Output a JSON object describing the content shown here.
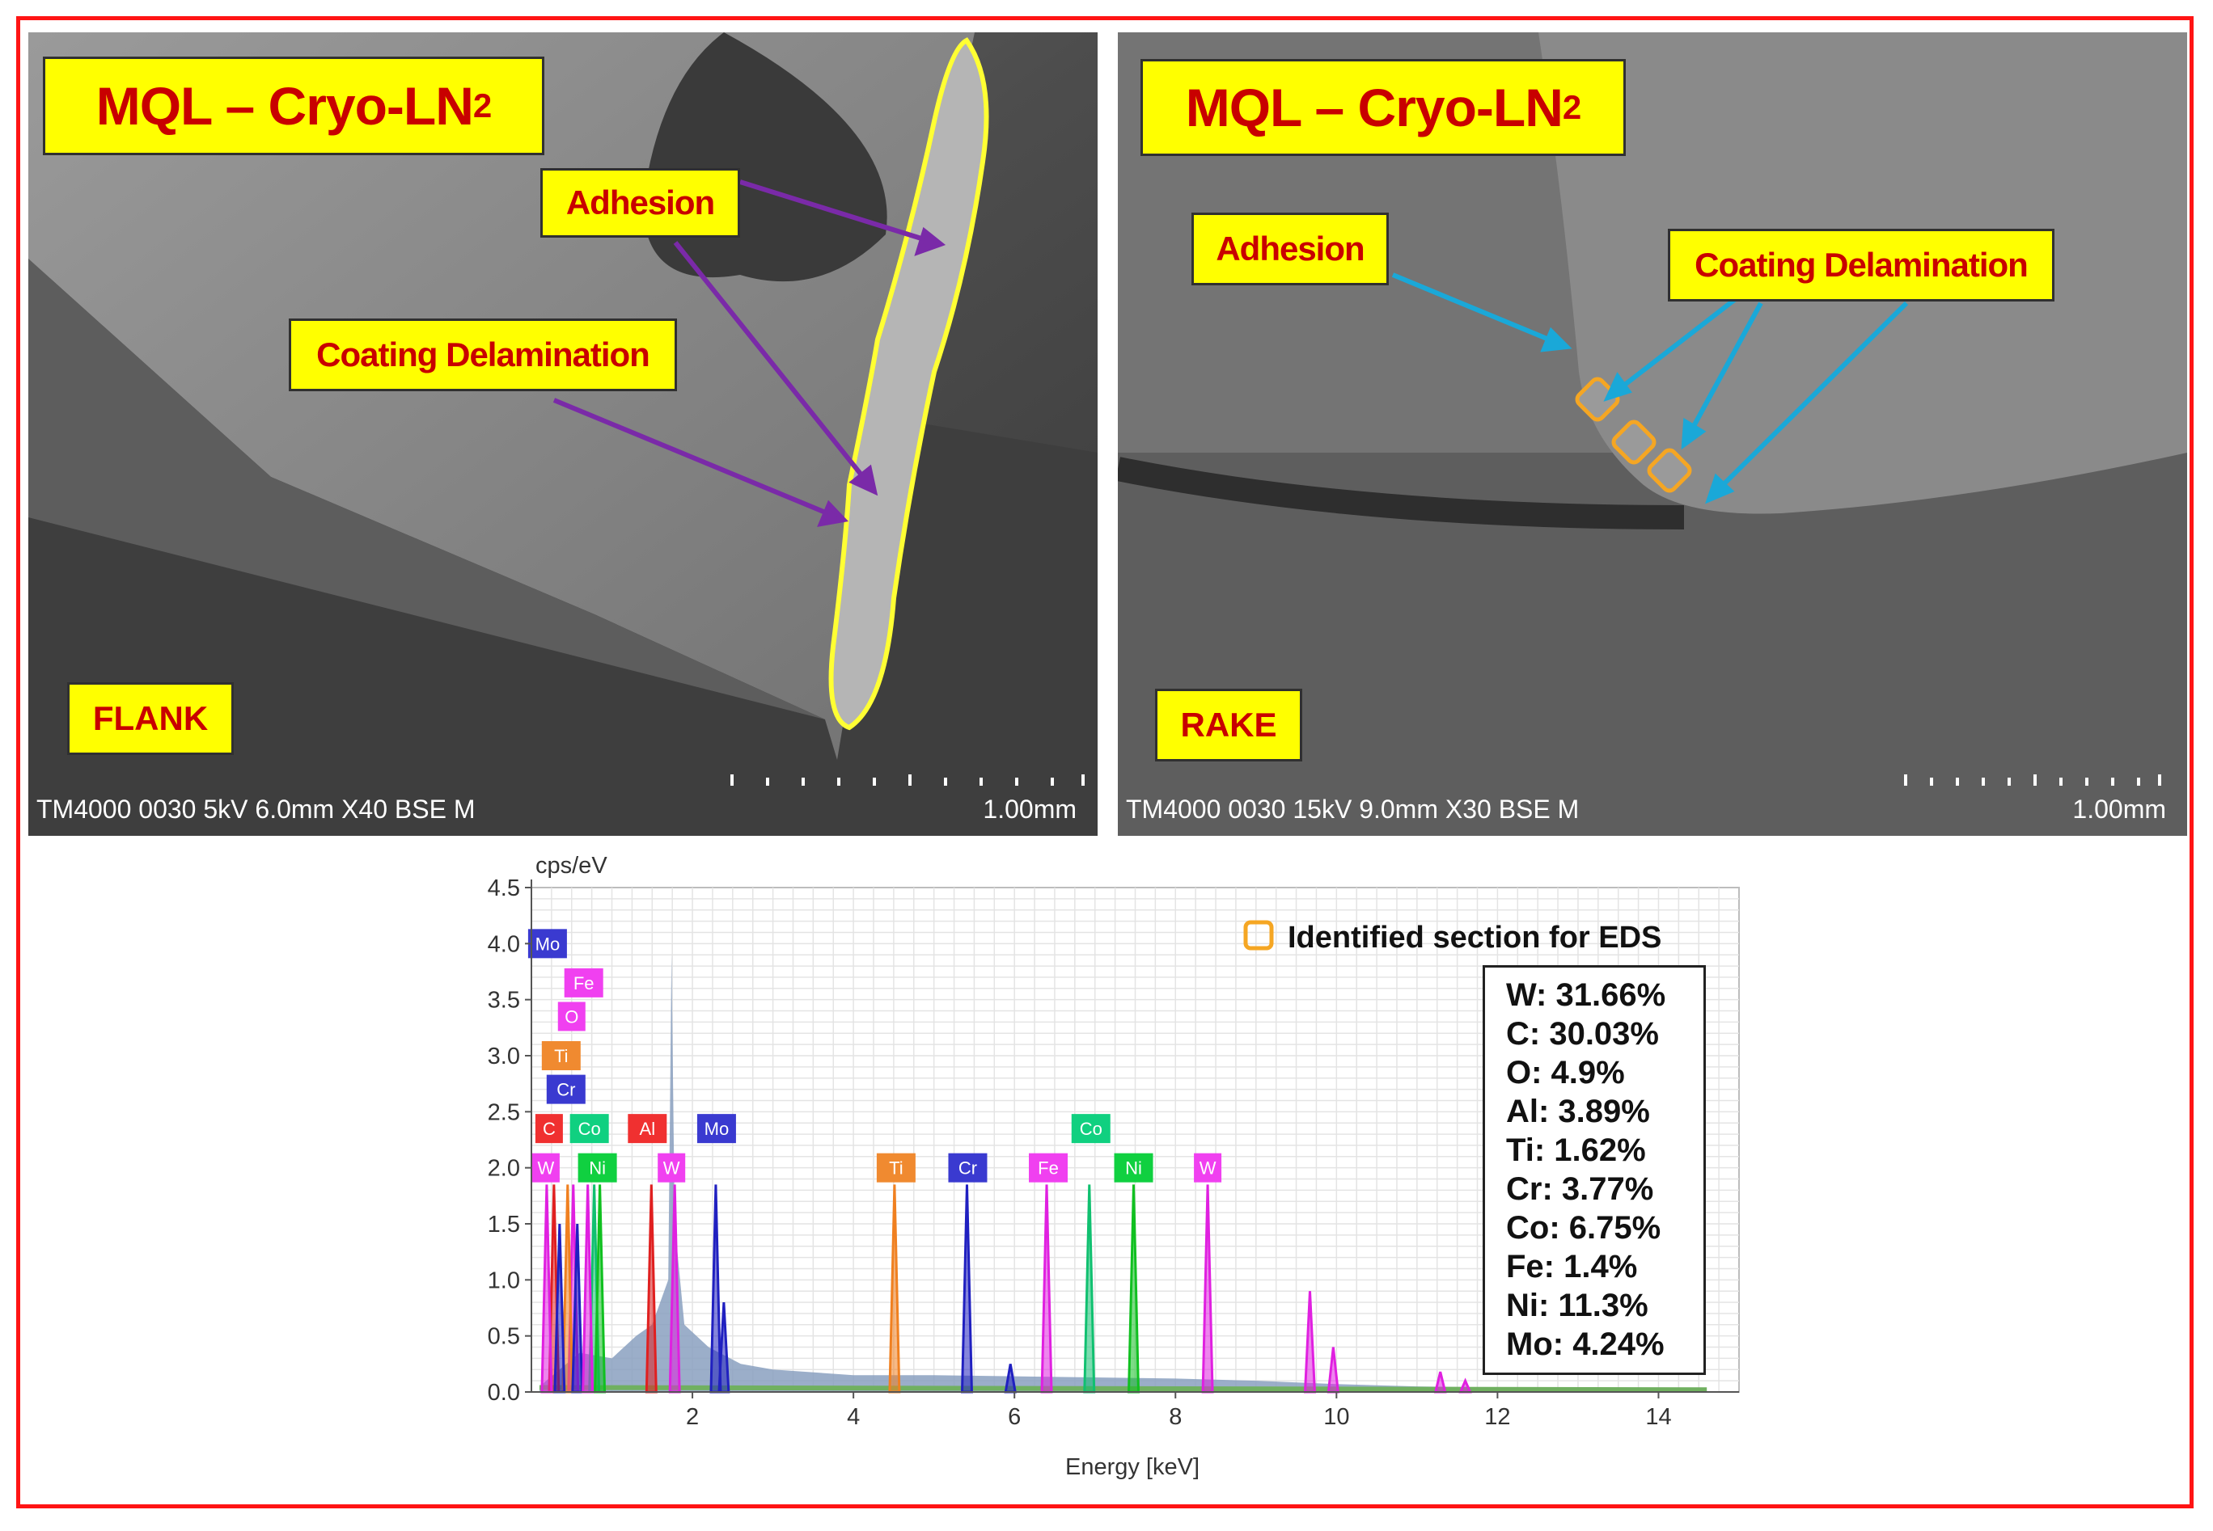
{
  "figure": {
    "frame_color": "#ff1414",
    "label_fill": "#ffff00",
    "label_text_color": "#c80000"
  },
  "flank_panel": {
    "title_main": "MQL – Cryo-LN",
    "title_sub": "2",
    "adhesion_label": "Adhesion",
    "delamination_label": "Coating Delamination",
    "position_label": "FLANK",
    "sem_info": "TM4000 0030 5kV 6.0mm X40 BSE M",
    "scale_label": "1.00mm",
    "outline_color": "#ffff33",
    "arrow_color": "#7a2aa8"
  },
  "rake_panel": {
    "title_main": "MQL – Cryo-LN",
    "title_sub": "2",
    "adhesion_label": "Adhesion",
    "delamination_label": "Coating Delamination",
    "position_label": "RAKE",
    "sem_info": "TM4000 0030 15kV 9.0mm X30 BSE M",
    "scale_label": "1.00mm",
    "marker_color": "#f5a623",
    "arrow_color": "#1aa8d8"
  },
  "chart_data": {
    "type": "line",
    "title": "",
    "xlabel": "Energy [keV]",
    "ylabel": "cps/eV",
    "xlim": [
      0,
      15
    ],
    "ylim": [
      0,
      4.5
    ],
    "x_ticks": [
      2,
      4,
      6,
      8,
      10,
      12,
      14
    ],
    "y_ticks": [
      "0.0",
      "0.5",
      "1.0",
      "1.5",
      "2.0",
      "2.5",
      "3.0",
      "3.5",
      "4.0",
      "4.5"
    ],
    "grid": true,
    "legend": {
      "label": "Identified section for EDS",
      "marker_color": "#f5a623",
      "placement": "top-right"
    },
    "main_peak": {
      "energy": 1.74,
      "height": 3.9,
      "color": "#8aa0c0"
    },
    "peaks": [
      {
        "element": "C",
        "energy": 0.28,
        "height": 1.85,
        "color": "#e02020"
      },
      {
        "element": "W",
        "energy": 0.19,
        "height": 1.85,
        "color": "#e020e0"
      },
      {
        "element": "O",
        "energy": 0.52,
        "height": 1.85,
        "color": "#e020e0"
      },
      {
        "element": "Ti",
        "energy": 0.45,
        "height": 1.85,
        "color": "#f08020"
      },
      {
        "element": "Cr",
        "energy": 0.57,
        "height": 1.5,
        "color": "#2020c0"
      },
      {
        "element": "Co",
        "energy": 0.78,
        "height": 1.85,
        "color": "#10c070"
      },
      {
        "element": "Ni",
        "energy": 0.85,
        "height": 1.85,
        "color": "#10c020"
      },
      {
        "element": "Fe",
        "energy": 0.7,
        "height": 1.85,
        "color": "#e020e0"
      },
      {
        "element": "Mo",
        "energy": 0.35,
        "height": 1.5,
        "color": "#2020c0"
      },
      {
        "element": "Al",
        "energy": 1.49,
        "height": 1.85,
        "color": "#e02020"
      },
      {
        "element": "W",
        "energy": 1.78,
        "height": 1.85,
        "color": "#e020e0"
      },
      {
        "element": "Mo",
        "energy": 2.29,
        "height": 1.85,
        "color": "#2020c0"
      },
      {
        "element": "Mo",
        "energy": 2.39,
        "height": 0.8,
        "color": "#2020c0"
      },
      {
        "element": "Ti",
        "energy": 4.51,
        "height": 1.85,
        "color": "#f08020"
      },
      {
        "element": "Cr",
        "energy": 5.41,
        "height": 1.85,
        "color": "#2020c0"
      },
      {
        "element": "Cr",
        "energy": 5.95,
        "height": 0.25,
        "color": "#2020c0"
      },
      {
        "element": "Fe",
        "energy": 6.4,
        "height": 1.85,
        "color": "#e020e0"
      },
      {
        "element": "Co",
        "energy": 6.93,
        "height": 1.85,
        "color": "#10c070"
      },
      {
        "element": "Ni",
        "energy": 7.48,
        "height": 1.85,
        "color": "#10c020"
      },
      {
        "element": "W",
        "energy": 8.4,
        "height": 1.85,
        "color": "#e020e0"
      },
      {
        "element": "W",
        "energy": 9.67,
        "height": 0.9,
        "color": "#e020e0"
      },
      {
        "element": "W",
        "energy": 9.96,
        "height": 0.4,
        "color": "#e020e0"
      },
      {
        "element": "W",
        "energy": 11.29,
        "height": 0.18,
        "color": "#e020e0"
      },
      {
        "element": "W",
        "energy": 11.6,
        "height": 0.1,
        "color": "#e020e0"
      }
    ],
    "element_labels": [
      {
        "text": "Mo",
        "energy": 0.2,
        "y": 4.0,
        "color": "#3a3ad0"
      },
      {
        "text": "Fe",
        "energy": 0.65,
        "y": 3.65,
        "color": "#f040f0"
      },
      {
        "text": "O",
        "energy": 0.5,
        "y": 3.35,
        "color": "#f040f0"
      },
      {
        "text": "Ti",
        "energy": 0.37,
        "y": 3.0,
        "color": "#f08a30"
      },
      {
        "text": "Cr",
        "energy": 0.43,
        "y": 2.7,
        "color": "#3a3ad0"
      },
      {
        "text": "C",
        "energy": 0.22,
        "y": 2.35,
        "color": "#f03030"
      },
      {
        "text": "Co",
        "energy": 0.72,
        "y": 2.35,
        "color": "#10d080"
      },
      {
        "text": "Al",
        "energy": 1.44,
        "y": 2.35,
        "color": "#f03030"
      },
      {
        "text": "Mo",
        "energy": 2.3,
        "y": 2.35,
        "color": "#3a3ad0"
      },
      {
        "text": "Co",
        "energy": 6.95,
        "y": 2.35,
        "color": "#10d080"
      },
      {
        "text": "W",
        "energy": 0.18,
        "y": 2.0,
        "color": "#f040f0"
      },
      {
        "text": "Ni",
        "energy": 0.82,
        "y": 2.0,
        "color": "#10d040"
      },
      {
        "text": "W",
        "energy": 1.74,
        "y": 2.0,
        "color": "#f040f0"
      },
      {
        "text": "Ti",
        "energy": 4.53,
        "y": 2.0,
        "color": "#f08a30"
      },
      {
        "text": "Cr",
        "energy": 5.42,
        "y": 2.0,
        "color": "#3a3ad0"
      },
      {
        "text": "Fe",
        "energy": 6.42,
        "y": 2.0,
        "color": "#f040f0"
      },
      {
        "text": "Ni",
        "energy": 7.48,
        "y": 2.0,
        "color": "#10d040"
      },
      {
        "text": "W",
        "energy": 8.4,
        "y": 2.0,
        "color": "#f040f0"
      }
    ]
  },
  "composition": [
    "W: 31.66%",
    "C: 30.03%",
    "O: 4.9%",
    "Al: 3.89%",
    "Ti: 1.62%",
    "Cr: 3.77%",
    "Co: 6.75%",
    "Fe: 1.4%",
    "Ni: 11.3%",
    "Mo: 4.24%"
  ]
}
